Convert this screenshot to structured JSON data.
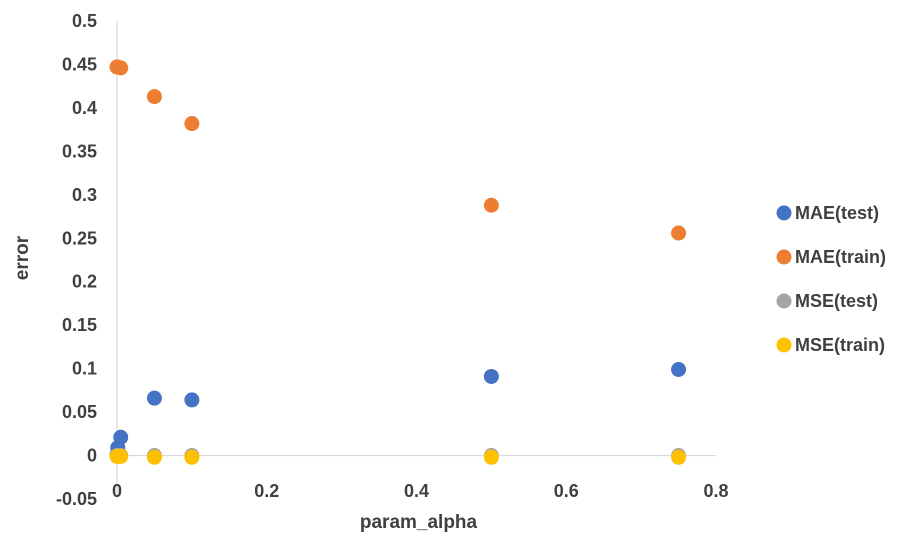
{
  "chart_data": {
    "type": "scatter",
    "title": "",
    "xlabel": "param_alpha",
    "ylabel": "error",
    "xlim": [
      0,
      0.8
    ],
    "ylim": [
      -0.05,
      0.5
    ],
    "x_ticks": [
      "0",
      "0.2",
      "0.4",
      "0.6",
      "0.8"
    ],
    "y_ticks": [
      "0.5",
      "0.45",
      "0.4",
      "0.35",
      "0.3",
      "0.25",
      "0.2",
      "0.15",
      "0.1",
      "0.05",
      "0",
      "-0.05"
    ],
    "grid": false,
    "legend_position": "right",
    "series": [
      {
        "name": "MAE(test)",
        "color": "#4472C4",
        "points": [
          {
            "x": 0,
            "y": 0.001
          },
          {
            "x": 0.001,
            "y": 0.009
          },
          {
            "x": 0.005,
            "y": 0.021
          },
          {
            "x": 0.05,
            "y": 0.066
          },
          {
            "x": 0.1,
            "y": 0.064
          },
          {
            "x": 0.5,
            "y": 0.091
          },
          {
            "x": 0.75,
            "y": 0.099
          }
        ]
      },
      {
        "name": "MAE(train)",
        "color": "#ED7D31",
        "points": [
          {
            "x": 0,
            "y": 0.447
          },
          {
            "x": 0.001,
            "y": 0.447
          },
          {
            "x": 0.005,
            "y": 0.446
          },
          {
            "x": 0.05,
            "y": 0.413
          },
          {
            "x": 0.1,
            "y": 0.382
          },
          {
            "x": 0.5,
            "y": 0.288
          },
          {
            "x": 0.75,
            "y": 0.256
          }
        ]
      },
      {
        "name": "MSE(test)",
        "color": "#A5A5A5",
        "points": [
          {
            "x": 0,
            "y": 0
          },
          {
            "x": 0.001,
            "y": 0
          },
          {
            "x": 0.005,
            "y": 0
          },
          {
            "x": 0.05,
            "y": 0
          },
          {
            "x": 0.1,
            "y": 0
          },
          {
            "x": 0.5,
            "y": 0
          },
          {
            "x": 0.75,
            "y": 0
          }
        ]
      },
      {
        "name": "MSE(train)",
        "color": "#FFC000",
        "points": [
          {
            "x": 0,
            "y": -0.001
          },
          {
            "x": 0.001,
            "y": -0.001
          },
          {
            "x": 0.005,
            "y": -0.001
          },
          {
            "x": 0.05,
            "y": -0.002
          },
          {
            "x": 0.1,
            "y": -0.002
          },
          {
            "x": 0.5,
            "y": -0.002
          },
          {
            "x": 0.75,
            "y": -0.002
          }
        ]
      }
    ]
  }
}
